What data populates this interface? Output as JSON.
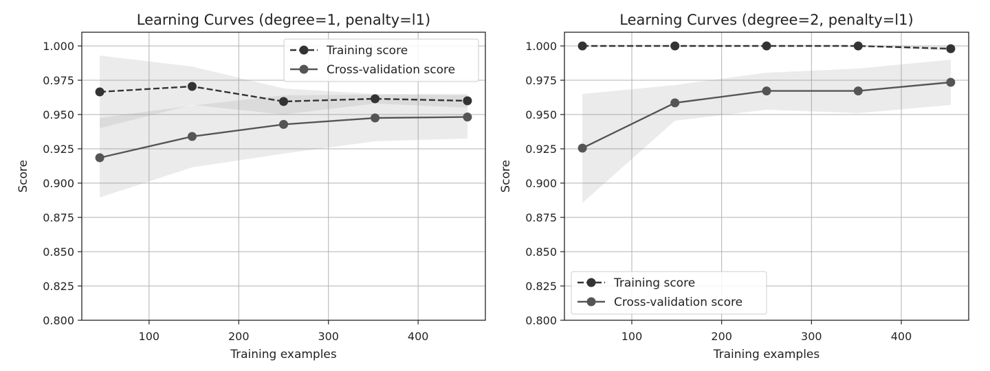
{
  "chart_data": [
    {
      "type": "line",
      "title": "Learning Curves (degree=1, penalty=l1)",
      "xlabel": "Training examples",
      "ylabel": "Score",
      "xlim": [
        25,
        475
      ],
      "ylim": [
        0.8,
        1.01
      ],
      "xticks": [
        "100",
        "200",
        "300",
        "400"
      ],
      "yticks": [
        "0.800",
        "0.825",
        "0.850",
        "0.875",
        "0.900",
        "0.925",
        "0.950",
        "0.975",
        "1.000"
      ],
      "grid": true,
      "legend_position": "top-right",
      "x": [
        45,
        148,
        250,
        352,
        455
      ],
      "series": [
        {
          "name": "Training score",
          "style": "dashed",
          "color": "#333333",
          "values": [
            0.9665,
            0.9705,
            0.9595,
            0.9615,
            0.96
          ],
          "band_low": [
            0.94,
            0.957,
            0.95,
            0.958,
            0.955
          ],
          "band_high": [
            0.993,
            0.985,
            0.969,
            0.965,
            0.965
          ]
        },
        {
          "name": "Cross-validation score",
          "style": "solid",
          "color": "#555555",
          "values": [
            0.9185,
            0.934,
            0.9428,
            0.9475,
            0.9482
          ],
          "band_low": [
            0.8895,
            0.9115,
            0.9215,
            0.9305,
            0.9325
          ],
          "band_high": [
            0.9475,
            0.9565,
            0.964,
            0.9645,
            0.964
          ]
        }
      ]
    },
    {
      "type": "line",
      "title": "Learning Curves (degree=2, penalty=l1)",
      "xlabel": "Training examples",
      "ylabel": "Score",
      "xlim": [
        25,
        475
      ],
      "ylim": [
        0.8,
        1.01
      ],
      "xticks": [
        "100",
        "200",
        "300",
        "400"
      ],
      "yticks": [
        "0.800",
        "0.825",
        "0.850",
        "0.875",
        "0.900",
        "0.925",
        "0.950",
        "0.975",
        "1.000"
      ],
      "grid": true,
      "legend_position": "lower-left",
      "x": [
        45,
        148,
        250,
        352,
        455
      ],
      "series": [
        {
          "name": "Training score",
          "style": "dashed",
          "color": "#333333",
          "values": [
            1.0,
            1.0,
            1.0,
            1.0,
            0.998
          ],
          "band_low": [
            1.0,
            1.0,
            1.0,
            0.9995,
            0.9965
          ],
          "band_high": [
            1.0,
            1.0,
            1.0,
            1.0,
            0.9995
          ]
        },
        {
          "name": "Cross-validation score",
          "style": "solid",
          "color": "#555555",
          "values": [
            0.9255,
            0.9585,
            0.9672,
            0.9672,
            0.9735
          ],
          "band_low": [
            0.8855,
            0.9455,
            0.9535,
            0.951,
            0.957
          ],
          "band_high": [
            0.965,
            0.9715,
            0.9805,
            0.9835,
            0.99
          ]
        }
      ]
    }
  ]
}
